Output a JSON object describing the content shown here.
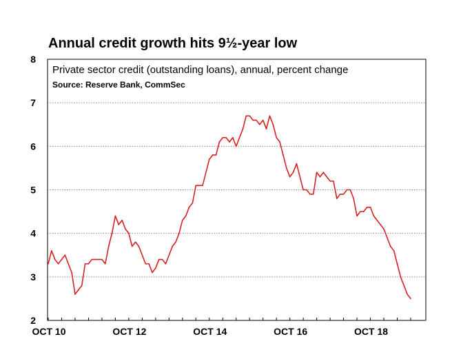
{
  "chart_data": {
    "type": "line",
    "title": "Annual credit growth hits 9½-year low",
    "subtitle": "Private sector credit (outstanding loans), annual, percent change",
    "source": "Source: Reserve Bank, CommSec",
    "x_tick_labels": [
      "OCT 10",
      "OCT 12",
      "OCT 14",
      "OCT 16",
      "OCT 18"
    ],
    "y_tick_labels": [
      "2",
      "3",
      "4",
      "5",
      "6",
      "7",
      "8"
    ],
    "ylim": [
      2,
      8
    ],
    "grid": "horizontal dotted",
    "line_color": "#d62020",
    "series": [
      {
        "values": [
          3.3,
          3.6,
          3.4,
          3.3,
          3.4,
          3.5,
          3.3,
          3.1,
          2.6,
          2.7,
          2.8,
          3.3,
          3.3,
          3.4,
          3.4,
          3.4,
          3.4,
          3.3,
          3.7,
          4.0,
          4.4,
          4.2,
          4.3,
          4.1,
          4.0,
          3.7,
          3.8,
          3.7,
          3.5,
          3.3,
          3.3,
          3.1,
          3.2,
          3.4,
          3.4,
          3.3,
          3.5,
          3.7,
          3.8,
          4.0,
          4.3,
          4.4,
          4.6,
          4.7,
          5.1,
          5.1,
          5.1,
          5.4,
          5.7,
          5.8,
          5.8,
          6.1,
          6.2,
          6.2,
          6.1,
          6.2,
          6.0,
          6.2,
          6.4,
          6.7,
          6.7,
          6.6,
          6.6,
          6.5,
          6.6,
          6.4,
          6.7,
          6.5,
          6.2,
          6.1,
          5.8,
          5.5,
          5.3,
          5.4,
          5.6,
          5.3,
          5.0,
          5.0,
          4.9,
          4.9,
          5.4,
          5.3,
          5.4,
          5.3,
          5.2,
          5.2,
          4.8,
          4.9,
          4.9,
          5.0,
          5.0,
          4.8,
          4.4,
          4.5,
          4.5,
          4.6,
          4.6,
          4.4,
          4.3,
          4.2,
          4.1,
          3.9,
          3.7,
          3.6,
          3.3,
          3.0,
          2.8,
          2.6,
          2.5
        ]
      }
    ]
  }
}
